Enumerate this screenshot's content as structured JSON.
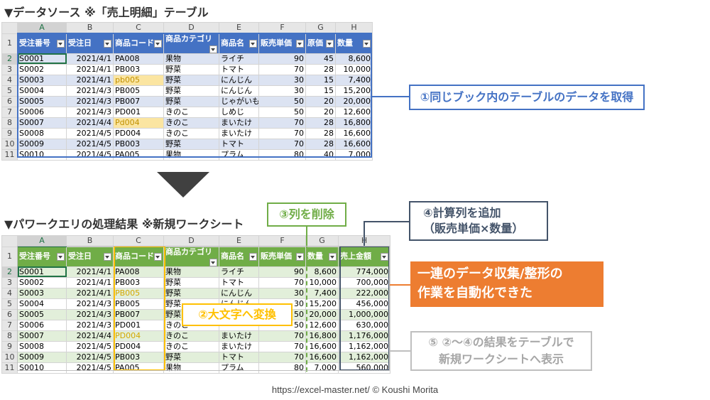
{
  "top": {
    "heading": "▼データソース ※「売上明細」テーブル",
    "col_letters": [
      "A",
      "B",
      "C",
      "D",
      "E",
      "F",
      "G",
      "H"
    ],
    "headers": [
      "受注番号",
      "受注日",
      "商品コード",
      "商品カテゴリ",
      "商品名",
      "販売単価",
      "原価",
      "数量"
    ],
    "rows": [
      [
        "1",
        "S0001",
        "2021/4/1",
        "PA008",
        "果物",
        "ライチ",
        "90",
        "45",
        "8,600"
      ],
      [
        "2",
        "S0002",
        "2021/4/1",
        "PB003",
        "野菜",
        "トマト",
        "70",
        "28",
        "10,000"
      ],
      [
        "3",
        "S0003",
        "2021/4/1",
        "pb005",
        "野菜",
        "にんじん",
        "30",
        "15",
        "7,400"
      ],
      [
        "4",
        "S0004",
        "2021/4/3",
        "PB005",
        "野菜",
        "にんじん",
        "30",
        "15",
        "15,200"
      ],
      [
        "5",
        "S0005",
        "2021/4/3",
        "PB007",
        "野菜",
        "じゃがいも",
        "50",
        "20",
        "20,000"
      ],
      [
        "6",
        "S0006",
        "2021/4/3",
        "PD001",
        "きのこ",
        "しめじ",
        "50",
        "20",
        "12,600"
      ],
      [
        "7",
        "S0007",
        "2021/4/4",
        "Pd004",
        "きのこ",
        "まいたけ",
        "70",
        "28",
        "16,800"
      ],
      [
        "8",
        "S0008",
        "2021/4/5",
        "PD004",
        "きのこ",
        "まいたけ",
        "70",
        "28",
        "16,600"
      ],
      [
        "9",
        "S0009",
        "2021/4/5",
        "PB003",
        "野菜",
        "トマト",
        "70",
        "28",
        "16,600"
      ],
      [
        "10",
        "S0010",
        "2021/4/5",
        "PA005",
        "果物",
        "プラム",
        "80",
        "40",
        "7,000"
      ]
    ]
  },
  "bottom": {
    "heading": "▼パワークエリの処理結果 ※新規ワークシート",
    "col_letters": [
      "A",
      "B",
      "C",
      "D",
      "E",
      "F",
      "G",
      "H"
    ],
    "headers": [
      "受注番号",
      "受注日",
      "商品コード",
      "商品カテゴリ",
      "商品名",
      "販売単価",
      "数量",
      "売上金額"
    ],
    "rows": [
      [
        "1",
        "S0001",
        "2021/4/1",
        "PA008",
        "果物",
        "ライチ",
        "90",
        "8,600",
        "774,000"
      ],
      [
        "2",
        "S0002",
        "2021/4/1",
        "PB003",
        "野菜",
        "トマト",
        "70",
        "10,000",
        "700,000"
      ],
      [
        "3",
        "S0003",
        "2021/4/1",
        "PB005",
        "野菜",
        "にんじん",
        "30",
        "7,400",
        "222,000"
      ],
      [
        "4",
        "S0004",
        "2021/4/3",
        "PB005",
        "野菜",
        "にんじん",
        "30",
        "15,200",
        "456,000"
      ],
      [
        "5",
        "S0005",
        "2021/4/3",
        "PB007",
        "野菜",
        "",
        "50",
        "20,000",
        "1,000,000"
      ],
      [
        "6",
        "S0006",
        "2021/4/3",
        "PD001",
        "きのこ",
        "",
        "50",
        "12,600",
        "630,000"
      ],
      [
        "7",
        "S0007",
        "2021/4/4",
        "PD004",
        "きのこ",
        "まいたけ",
        "70",
        "16,800",
        "1,176,000"
      ],
      [
        "8",
        "S0008",
        "2021/4/5",
        "PD004",
        "きのこ",
        "まいたけ",
        "70",
        "16,600",
        "1,162,000"
      ],
      [
        "9",
        "S0009",
        "2021/4/5",
        "PB003",
        "野菜",
        "トマト",
        "70",
        "16,600",
        "1,162,000"
      ],
      [
        "10",
        "S0010",
        "2021/4/5",
        "PA005",
        "果物",
        "プラム",
        "80",
        "7,000",
        "560,000"
      ]
    ]
  },
  "callouts": {
    "c1": "①同じブック内のテーブルのデータを取得",
    "c2": "②大文字へ変換",
    "c3": "③列を削除",
    "c4_line1": "④計算列を追加",
    "c4_line2": "（販売単価×数量）",
    "c5_line1": "⑤ ②～④の結果をテーブルで",
    "c5_line2": "新規ワークシートへ表示",
    "orange_line1": "一連のデータ収集/整形の",
    "orange_line2": "作業を自動化できた"
  },
  "colors": {
    "blue": "#4472c4",
    "green": "#70ad47",
    "orange": "#ed7d31",
    "yellow": "#ffc000",
    "navy": "#44546a",
    "gray": "#bfbfbf"
  },
  "footer": "https://excel-master.net/  © Koushi Morita"
}
